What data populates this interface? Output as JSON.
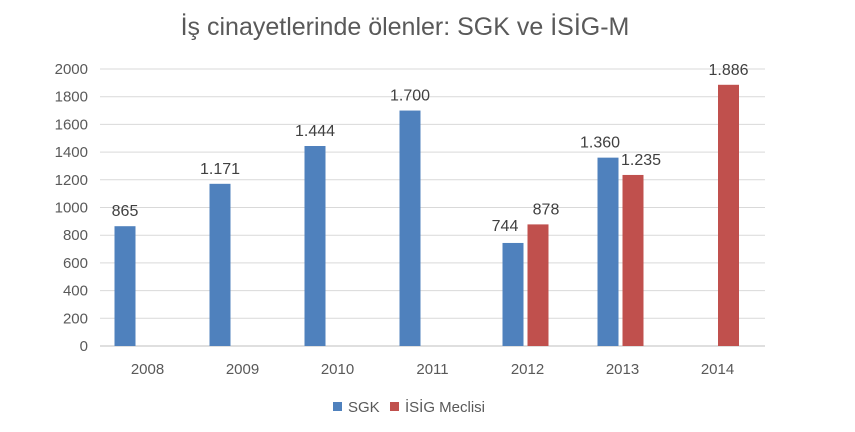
{
  "chart_data": {
    "type": "bar",
    "title": "İş cinayetlerinde ölenler: SGK ve İSİG-M",
    "categories": [
      "2008",
      "2009",
      "2010",
      "2011",
      "2012",
      "2013",
      "2014"
    ],
    "series": [
      {
        "name": "SGK",
        "color": "#4f81bd",
        "values": [
          865,
          1171,
          1444,
          1700,
          744,
          1360,
          null
        ],
        "labels": [
          "865",
          "1.171",
          "1.444",
          "1.700",
          "744",
          "1.360",
          null
        ]
      },
      {
        "name": "İSİG Meclisi",
        "color": "#c0504d",
        "values": [
          null,
          null,
          null,
          null,
          878,
          1235,
          1886
        ],
        "labels": [
          null,
          null,
          null,
          null,
          "878",
          "1.235",
          "1.886"
        ]
      }
    ],
    "ylim": [
      0,
      2000
    ],
    "yticks": [
      0,
      200,
      400,
      600,
      800,
      1000,
      1200,
      1400,
      1600,
      1800,
      2000
    ],
    "grid": true,
    "legend_position": "bottom"
  }
}
